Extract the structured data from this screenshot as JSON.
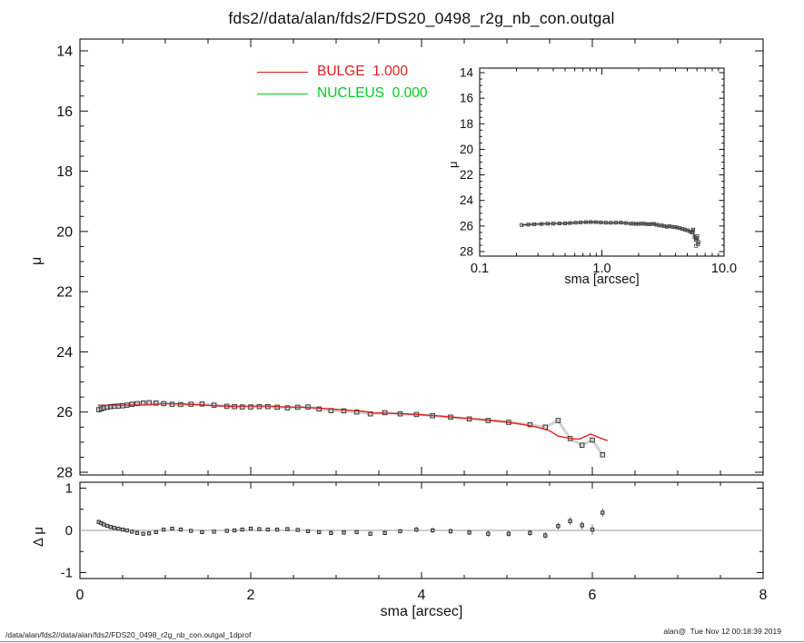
{
  "title": "fds2//data/alan/fds2/FDS20_0498_r2g_nb_con.outgal",
  "footer": {
    "left": "/data/alan/fds2//data/alan/fds2/FDS20_0498_r2g_nb_con.outgal_1dprof",
    "right": "alan@  Tue Nov 12 00:18:39 2019"
  },
  "colors": {
    "bulge": "#dc1c1c",
    "nucleus": "#00cc22",
    "data_marker": "#2a2a2a",
    "axis": "#111111",
    "zero_line": "#9a9a9a",
    "background": "#ffffff"
  },
  "legend": {
    "items": [
      {
        "name": "bulge",
        "label": "BULGE  1.000",
        "color": "#dc1c1c"
      },
      {
        "name": "nucleus",
        "label": "NUCLEUS  0.000",
        "color": "#00cc22"
      }
    ]
  },
  "chart_data": [
    {
      "id": "main-profile",
      "type": "scatter",
      "xlabel": "sma [arcsec]",
      "ylabel": "μ",
      "xlim": [
        0,
        8
      ],
      "ylim": [
        28,
        14
      ],
      "y_inverted": true,
      "grid": false,
      "xticks": {
        "values": [
          0,
          2,
          4,
          6,
          8
        ],
        "labels": [
          "0",
          "2",
          "4",
          "6",
          "8"
        ]
      },
      "yticks": {
        "values": [
          14,
          16,
          18,
          20,
          22,
          24,
          26,
          28
        ],
        "labels": [
          "14",
          "16",
          "18",
          "20",
          "22",
          "24",
          "26",
          "28"
        ]
      },
      "series": [
        {
          "name": "surface-brightness-profile",
          "marker": "open-square",
          "color": "#2a2a2a",
          "x": [
            0.22,
            0.25,
            0.28,
            0.32,
            0.36,
            0.4,
            0.45,
            0.5,
            0.55,
            0.61,
            0.67,
            0.74,
            0.81,
            0.89,
            0.98,
            1.08,
            1.18,
            1.3,
            1.43,
            1.57,
            1.72,
            1.81,
            1.9,
            2.0,
            2.1,
            2.2,
            2.31,
            2.43,
            2.55,
            2.67,
            2.8,
            2.94,
            3.09,
            3.24,
            3.4,
            3.57,
            3.75,
            3.94,
            4.13,
            4.34,
            4.56,
            4.78,
            5.02,
            5.27,
            5.45,
            5.6,
            5.74,
            5.88,
            6.0,
            6.12
          ],
          "y": [
            25.92,
            25.89,
            25.86,
            25.84,
            25.82,
            25.81,
            25.8,
            25.79,
            25.77,
            25.74,
            25.72,
            25.7,
            25.69,
            25.7,
            25.72,
            25.74,
            25.75,
            25.74,
            25.73,
            25.77,
            25.81,
            25.82,
            25.83,
            25.83,
            25.82,
            25.82,
            25.84,
            25.86,
            25.84,
            25.83,
            25.9,
            25.95,
            25.96,
            26.0,
            26.06,
            26.02,
            26.06,
            26.08,
            26.12,
            26.17,
            26.23,
            26.28,
            26.34,
            26.42,
            26.5,
            26.28,
            26.88,
            27.1,
            26.93,
            27.42
          ]
        },
        {
          "name": "bulge-model",
          "type": "line",
          "color": "#dc1c1c",
          "x": [
            0.21,
            0.4,
            0.6,
            0.8,
            1.0,
            1.2,
            1.4,
            1.6,
            1.8,
            2.0,
            2.2,
            2.4,
            2.6,
            2.8,
            3.0,
            3.2,
            3.3,
            3.45,
            3.6,
            3.8,
            4.0,
            4.2,
            4.4,
            4.6,
            4.8,
            5.0,
            5.2,
            5.35,
            5.5,
            5.6,
            5.75,
            5.85,
            5.98,
            6.08,
            6.18
          ],
          "y": [
            25.77,
            25.77,
            25.77,
            25.76,
            25.72,
            25.73,
            25.76,
            25.79,
            25.81,
            25.8,
            25.8,
            25.83,
            25.84,
            25.87,
            25.91,
            25.95,
            25.97,
            26.03,
            26.04,
            26.06,
            26.09,
            26.13,
            26.18,
            26.22,
            26.27,
            26.33,
            26.42,
            26.5,
            26.62,
            26.8,
            26.88,
            26.9,
            26.73,
            26.85,
            26.95
          ]
        }
      ]
    },
    {
      "id": "inset-log-profile",
      "type": "scatter",
      "xlabel": "sma [arcsec]",
      "ylabel": "μ",
      "xscale": "log",
      "xlim": [
        0.1,
        10
      ],
      "ylim": [
        28,
        14
      ],
      "y_inverted": true,
      "grid": false,
      "xticks": {
        "values": [
          0.1,
          1.0,
          10.0
        ],
        "labels": [
          "0.1",
          "1.0",
          "10.0"
        ]
      },
      "yticks": {
        "values": [
          14,
          16,
          18,
          20,
          22,
          24,
          26,
          28
        ],
        "labels": [
          "14",
          "16",
          "18",
          "20",
          "22",
          "24",
          "26",
          "28"
        ]
      },
      "series": [
        {
          "name": "surface-brightness-profile-log",
          "marker": "open-square",
          "color": "#444444",
          "x": [
            0.22,
            0.25,
            0.28,
            0.32,
            0.36,
            0.4,
            0.45,
            0.5,
            0.55,
            0.61,
            0.67,
            0.74,
            0.81,
            0.89,
            0.98,
            1.08,
            1.18,
            1.3,
            1.43,
            1.57,
            1.72,
            1.81,
            1.9,
            2.0,
            2.1,
            2.2,
            2.31,
            2.43,
            2.55,
            2.67,
            2.8,
            2.94,
            3.09,
            3.24,
            3.4,
            3.57,
            3.75,
            3.94,
            4.13,
            4.34,
            4.56,
            4.78,
            5.02,
            5.27,
            5.45,
            5.6,
            5.74,
            5.88,
            6.0,
            6.12
          ],
          "y": [
            25.92,
            25.89,
            25.86,
            25.84,
            25.82,
            25.81,
            25.8,
            25.79,
            25.77,
            25.74,
            25.72,
            25.7,
            25.69,
            25.7,
            25.72,
            25.74,
            25.75,
            25.74,
            25.73,
            25.77,
            25.81,
            25.82,
            25.83,
            25.83,
            25.82,
            25.82,
            25.84,
            25.86,
            25.84,
            25.83,
            25.9,
            25.95,
            25.96,
            26.0,
            26.06,
            26.02,
            26.06,
            26.08,
            26.12,
            26.17,
            26.23,
            26.28,
            26.34,
            26.42,
            26.5,
            26.28,
            26.88,
            27.1,
            26.93,
            27.42
          ]
        },
        {
          "name": "tail-scatter",
          "marker": "open-square",
          "color": "#555555",
          "x": [
            5.9,
            6.05,
            6.2
          ],
          "y": [
            27.55,
            26.8,
            27.25
          ]
        }
      ]
    },
    {
      "id": "residual-panel",
      "type": "scatter",
      "xlabel": "sma [arcsec]",
      "ylabel": "Δ μ",
      "xlim": [
        0,
        8
      ],
      "ylim": [
        -1,
        1
      ],
      "grid": false,
      "zero_line": true,
      "xticks": {
        "values": [
          0,
          2,
          4,
          6,
          8
        ],
        "labels": [
          "0",
          "2",
          "4",
          "6",
          "8"
        ]
      },
      "yticks": {
        "values": [
          1,
          0,
          -1
        ],
        "labels": [
          "1",
          "0",
          "-1"
        ]
      },
      "series": [
        {
          "name": "fit-residuals",
          "marker": "open-square",
          "color": "#222222",
          "x": [
            0.22,
            0.25,
            0.28,
            0.32,
            0.36,
            0.4,
            0.45,
            0.5,
            0.55,
            0.61,
            0.67,
            0.74,
            0.81,
            0.89,
            0.98,
            1.08,
            1.18,
            1.3,
            1.43,
            1.57,
            1.72,
            1.81,
            1.9,
            2.0,
            2.1,
            2.2,
            2.31,
            2.43,
            2.55,
            2.67,
            2.8,
            2.94,
            3.09,
            3.24,
            3.4,
            3.57,
            3.75,
            3.94,
            4.13,
            4.34,
            4.56,
            4.78,
            5.02,
            5.27,
            5.45,
            5.6,
            5.74,
            5.88,
            6.0,
            6.12
          ],
          "y": [
            0.2,
            0.17,
            0.14,
            0.11,
            0.08,
            0.06,
            0.04,
            0.02,
            0.0,
            -0.03,
            -0.06,
            -0.08,
            -0.07,
            -0.04,
            0.02,
            0.04,
            0.02,
            -0.01,
            -0.04,
            -0.03,
            -0.01,
            0.0,
            0.02,
            0.04,
            0.03,
            0.02,
            0.02,
            0.03,
            0.01,
            -0.02,
            -0.04,
            -0.06,
            -0.05,
            -0.04,
            -0.08,
            -0.06,
            -0.02,
            0.02,
            0.0,
            -0.02,
            -0.05,
            -0.08,
            -0.08,
            -0.06,
            -0.12,
            0.1,
            0.22,
            0.12,
            0.02,
            0.42
          ],
          "yerr": [
            0.02,
            0.02,
            0.02,
            0.02,
            0.02,
            0.02,
            0.02,
            0.02,
            0.02,
            0.02,
            0.02,
            0.02,
            0.02,
            0.02,
            0.03,
            0.03,
            0.03,
            0.03,
            0.03,
            0.03,
            0.03,
            0.03,
            0.03,
            0.03,
            0.04,
            0.04,
            0.04,
            0.04,
            0.04,
            0.04,
            0.05,
            0.05,
            0.05,
            0.05,
            0.05,
            0.05,
            0.05,
            0.06,
            0.06,
            0.06,
            0.06,
            0.07,
            0.07,
            0.07,
            0.08,
            0.08,
            0.09,
            0.1,
            0.12,
            0.1
          ]
        }
      ]
    }
  ]
}
